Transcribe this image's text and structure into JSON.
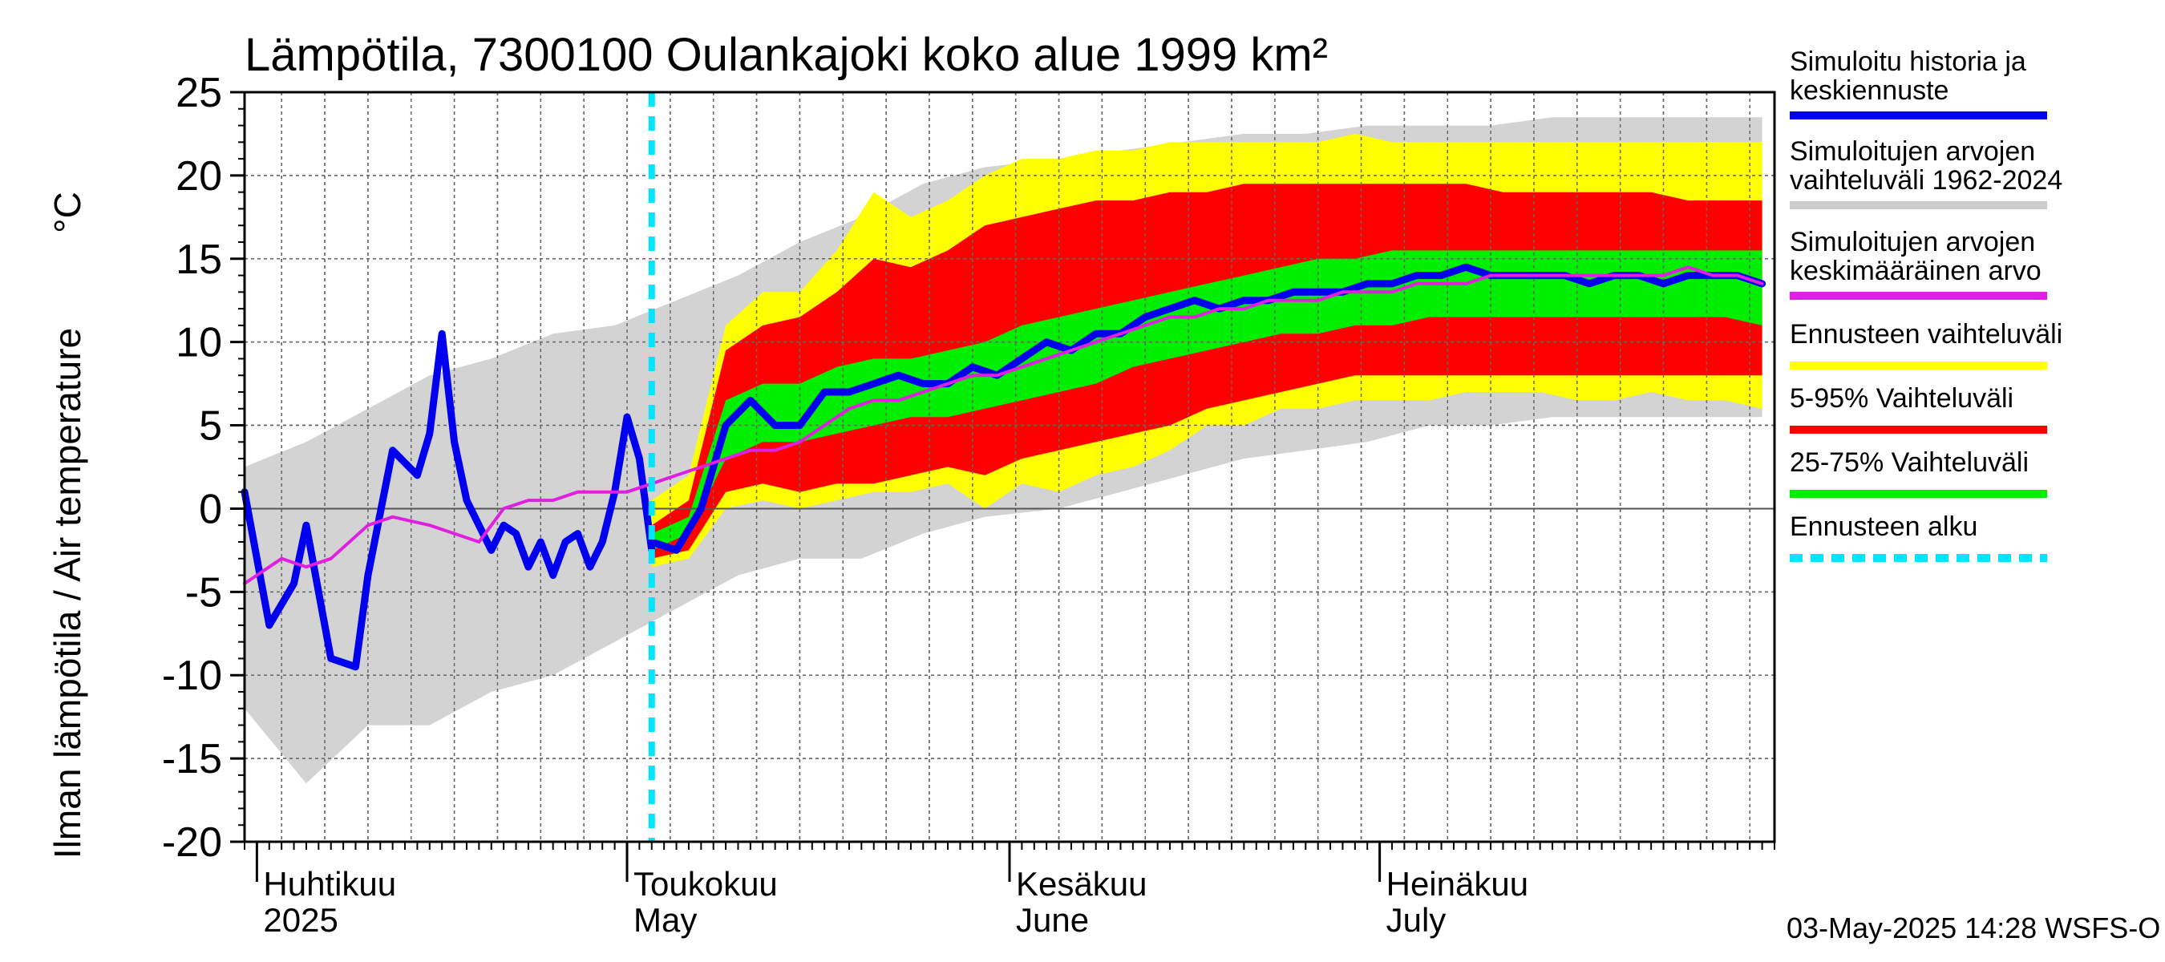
{
  "chart_data": {
    "type": "area",
    "title": "Lämpötila, 7300100 Oulankajoki koko alue 1999 km²",
    "ylabel": "Ilman lämpötila / Air temperature",
    "yunit": "°C",
    "ylim": [
      -20,
      25
    ],
    "yticks": [
      -20,
      -15,
      -10,
      -5,
      0,
      5,
      10,
      15,
      20,
      25
    ],
    "xlim": [
      "2025-03-31",
      "2025-08-02"
    ],
    "month_labels": [
      {
        "fi": "Huhtikuu",
        "en": "2025",
        "date": "2025-04-01"
      },
      {
        "fi": "Toukokuu",
        "en": "May",
        "date": "2025-05-01"
      },
      {
        "fi": "Kesäkuu",
        "en": "June",
        "date": "2025-06-01"
      },
      {
        "fi": "Heinäkuu",
        "en": "July",
        "date": "2025-07-01"
      }
    ],
    "forecast_start": "2025-05-03",
    "timestamp": "03-May-2025 14:28 WSFS-O",
    "grid": true,
    "legend_position": "right",
    "legend": [
      {
        "label_line1": "Simuloitu historia ja",
        "label_line2": "keskiennuste",
        "color": "#0000ee",
        "style": "line"
      },
      {
        "label_line1": "Simuloitujen arvojen",
        "label_line2": "vaihteluväli 1962-2024",
        "color": "#cccccc",
        "style": "line"
      },
      {
        "label_line1": "Simuloitujen arvojen",
        "label_line2": "keskimääräinen arvo",
        "color": "#e020e0",
        "style": "line"
      },
      {
        "label_line1": "Ennusteen vaihteluväli",
        "label_line2": "",
        "color": "#ffff00",
        "style": "line"
      },
      {
        "label_line1": "5-95% Vaihteluväli",
        "label_line2": "",
        "color": "#ff0000",
        "style": "line"
      },
      {
        "label_line1": "25-75% Vaihteluväli",
        "label_line2": "",
        "color": "#00ee00",
        "style": "line"
      },
      {
        "label_line1": "Ennusteen alku",
        "label_line2": "",
        "color": "#00e5ff",
        "style": "dashed"
      }
    ],
    "series": [
      {
        "name": "Simuloitu historia ja keskiennuste",
        "role": "history",
        "x": [
          "2025-03-31",
          "2025-04-02",
          "2025-04-04",
          "2025-04-05",
          "2025-04-07",
          "2025-04-09",
          "2025-04-10",
          "2025-04-12",
          "2025-04-14",
          "2025-04-15",
          "2025-04-16",
          "2025-04-17",
          "2025-04-18",
          "2025-04-20",
          "2025-04-21",
          "2025-04-22",
          "2025-04-23",
          "2025-04-24",
          "2025-04-25",
          "2025-04-26",
          "2025-04-27",
          "2025-04-28",
          "2025-04-29",
          "2025-04-30",
          "2025-05-01",
          "2025-05-02",
          "2025-05-03"
        ],
        "values": [
          1.0,
          -7.0,
          -4.5,
          -1.0,
          -9.0,
          -9.5,
          -4.0,
          3.5,
          2.0,
          4.5,
          10.5,
          4.0,
          0.5,
          -2.5,
          -1.0,
          -1.5,
          -3.5,
          -2.0,
          -4.0,
          -2.0,
          -1.5,
          -3.5,
          -2.0,
          1.0,
          5.5,
          3.0,
          -2.5
        ]
      },
      {
        "name": "keskiennuste",
        "role": "median-forecast",
        "x": [
          "2025-05-03",
          "2025-05-05",
          "2025-05-07",
          "2025-05-09",
          "2025-05-11",
          "2025-05-13",
          "2025-05-15",
          "2025-05-17",
          "2025-05-19",
          "2025-05-21",
          "2025-05-23",
          "2025-05-25",
          "2025-05-27",
          "2025-05-29",
          "2025-05-31",
          "2025-06-02",
          "2025-06-04",
          "2025-06-06",
          "2025-06-08",
          "2025-06-10",
          "2025-06-12",
          "2025-06-14",
          "2025-06-16",
          "2025-06-18",
          "2025-06-20",
          "2025-06-22",
          "2025-06-24",
          "2025-06-26",
          "2025-06-28",
          "2025-06-30",
          "2025-07-02",
          "2025-07-04",
          "2025-07-06",
          "2025-07-08",
          "2025-07-10",
          "2025-07-12",
          "2025-07-14",
          "2025-07-16",
          "2025-07-18",
          "2025-07-20",
          "2025-07-22",
          "2025-07-24",
          "2025-07-26",
          "2025-07-28",
          "2025-07-30",
          "2025-08-01"
        ],
        "values": [
          -2.0,
          -2.5,
          0.0,
          5.0,
          6.5,
          5.0,
          5.0,
          7.0,
          7.0,
          7.5,
          8.0,
          7.5,
          7.5,
          8.5,
          8.0,
          9.0,
          10.0,
          9.5,
          10.5,
          10.5,
          11.5,
          12.0,
          12.5,
          12.0,
          12.5,
          12.5,
          13.0,
          13.0,
          13.0,
          13.5,
          13.5,
          14.0,
          14.0,
          14.5,
          14.0,
          14.0,
          14.0,
          14.0,
          13.5,
          14.0,
          14.0,
          13.5,
          14.0,
          14.0,
          14.0,
          13.5
        ]
      },
      {
        "name": "Simuloitujen arvojen keskimääräinen arvo",
        "role": "mean",
        "x": [
          "2025-03-31",
          "2025-04-03",
          "2025-04-05",
          "2025-04-07",
          "2025-04-10",
          "2025-04-12",
          "2025-04-15",
          "2025-04-17",
          "2025-04-19",
          "2025-04-21",
          "2025-04-23",
          "2025-04-25",
          "2025-04-27",
          "2025-04-29",
          "2025-05-01",
          "2025-05-03",
          "2025-05-05",
          "2025-05-07",
          "2025-05-09",
          "2025-05-11",
          "2025-05-13",
          "2025-05-15",
          "2025-05-17",
          "2025-05-19",
          "2025-05-21",
          "2025-05-23",
          "2025-05-25",
          "2025-05-27",
          "2025-05-29",
          "2025-05-31",
          "2025-06-02",
          "2025-06-04",
          "2025-06-06",
          "2025-06-08",
          "2025-06-10",
          "2025-06-12",
          "2025-06-14",
          "2025-06-16",
          "2025-06-18",
          "2025-06-20",
          "2025-06-22",
          "2025-06-24",
          "2025-06-26",
          "2025-06-28",
          "2025-06-30",
          "2025-07-02",
          "2025-07-04",
          "2025-07-06",
          "2025-07-08",
          "2025-07-10",
          "2025-07-12",
          "2025-07-14",
          "2025-07-16",
          "2025-07-18",
          "2025-07-20",
          "2025-07-22",
          "2025-07-24",
          "2025-07-26",
          "2025-07-28",
          "2025-07-30",
          "2025-08-01"
        ],
        "values": [
          -4.5,
          -3.0,
          -3.5,
          -3.0,
          -1.0,
          -0.5,
          -1.0,
          -1.5,
          -2.0,
          0.0,
          0.5,
          0.5,
          1.0,
          1.0,
          1.0,
          1.5,
          2.0,
          2.5,
          3.0,
          3.5,
          3.5,
          4.0,
          5.0,
          6.0,
          6.5,
          6.5,
          7.0,
          7.5,
          8.0,
          8.0,
          8.5,
          9.0,
          9.5,
          10.0,
          10.5,
          11.0,
          11.5,
          11.5,
          12.0,
          12.0,
          12.5,
          12.5,
          12.5,
          13.0,
          13.0,
          13.0,
          13.5,
          13.5,
          13.5,
          14.0,
          14.0,
          14.0,
          14.0,
          14.0,
          14.0,
          14.0,
          14.0,
          14.5,
          14.0,
          14.0,
          13.5
        ]
      },
      {
        "name": "Simuloitujen arvojen vaihteluväli 1962-2024",
        "role": "band",
        "x": [
          "2025-03-31",
          "2025-04-05",
          "2025-04-10",
          "2025-04-15",
          "2025-04-20",
          "2025-04-25",
          "2025-04-30",
          "2025-05-05",
          "2025-05-10",
          "2025-05-15",
          "2025-05-20",
          "2025-05-25",
          "2025-05-30",
          "2025-06-05",
          "2025-06-10",
          "2025-06-15",
          "2025-06-20",
          "2025-06-25",
          "2025-06-30",
          "2025-07-05",
          "2025-07-10",
          "2025-07-15",
          "2025-07-20",
          "2025-07-25",
          "2025-08-01"
        ],
        "low": [
          -12.0,
          -16.5,
          -13.0,
          -13.0,
          -11.0,
          -10.0,
          -8.0,
          -6.0,
          -4.0,
          -3.0,
          -3.0,
          -1.5,
          -0.5,
          0.0,
          1.0,
          2.0,
          3.0,
          3.5,
          4.0,
          5.0,
          5.0,
          5.5,
          5.5,
          5.5,
          5.5
        ],
        "high": [
          2.5,
          4.0,
          6.0,
          8.0,
          9.0,
          10.5,
          11.0,
          12.5,
          14.0,
          16.0,
          17.5,
          19.5,
          20.5,
          21.0,
          21.5,
          22.0,
          22.5,
          22.5,
          23.0,
          23.0,
          23.0,
          23.5,
          23.5,
          23.5,
          23.5
        ]
      },
      {
        "name": "Ennusteen vaihteluväli",
        "role": "band",
        "x": [
          "2025-05-03",
          "2025-05-06",
          "2025-05-09",
          "2025-05-12",
          "2025-05-15",
          "2025-05-18",
          "2025-05-21",
          "2025-05-24",
          "2025-05-27",
          "2025-05-30",
          "2025-06-02",
          "2025-06-05",
          "2025-06-08",
          "2025-06-11",
          "2025-06-14",
          "2025-06-17",
          "2025-06-20",
          "2025-06-23",
          "2025-06-26",
          "2025-06-29",
          "2025-07-02",
          "2025-07-05",
          "2025-07-08",
          "2025-07-11",
          "2025-07-14",
          "2025-07-17",
          "2025-07-20",
          "2025-07-23",
          "2025-07-26",
          "2025-07-29",
          "2025-08-01"
        ],
        "low": [
          -3.5,
          -3.0,
          0.0,
          0.5,
          0.0,
          0.5,
          1.0,
          1.0,
          1.5,
          0.0,
          1.5,
          1.0,
          2.0,
          2.5,
          3.5,
          5.0,
          5.0,
          6.0,
          6.0,
          6.5,
          6.5,
          6.5,
          7.0,
          7.0,
          7.0,
          6.5,
          6.5,
          7.0,
          6.5,
          6.5,
          6.0
        ],
        "high": [
          0.5,
          2.0,
          11.0,
          13.0,
          13.0,
          15.5,
          19.0,
          17.5,
          18.5,
          20.0,
          21.0,
          21.0,
          21.5,
          21.5,
          22.0,
          22.0,
          22.0,
          22.0,
          22.0,
          22.5,
          22.0,
          22.0,
          22.0,
          22.0,
          22.0,
          22.0,
          22.0,
          22.0,
          22.0,
          22.0,
          22.0
        ]
      },
      {
        "name": "5-95% Vaihteluväli",
        "role": "band",
        "x": [
          "2025-05-03",
          "2025-05-06",
          "2025-05-09",
          "2025-05-12",
          "2025-05-15",
          "2025-05-18",
          "2025-05-21",
          "2025-05-24",
          "2025-05-27",
          "2025-05-30",
          "2025-06-02",
          "2025-06-05",
          "2025-06-08",
          "2025-06-11",
          "2025-06-14",
          "2025-06-17",
          "2025-06-20",
          "2025-06-23",
          "2025-06-26",
          "2025-06-29",
          "2025-07-02",
          "2025-07-05",
          "2025-07-08",
          "2025-07-11",
          "2025-07-14",
          "2025-07-17",
          "2025-07-20",
          "2025-07-23",
          "2025-07-26",
          "2025-07-29",
          "2025-08-01"
        ],
        "low": [
          -3.0,
          -2.5,
          1.0,
          1.5,
          1.0,
          1.5,
          1.5,
          2.0,
          2.5,
          2.0,
          3.0,
          3.5,
          4.0,
          4.5,
          5.0,
          6.0,
          6.5,
          7.0,
          7.5,
          8.0,
          8.0,
          8.0,
          8.0,
          8.0,
          8.0,
          8.0,
          8.0,
          8.0,
          8.0,
          8.0,
          8.0
        ],
        "high": [
          -1.0,
          0.5,
          9.5,
          11.0,
          11.5,
          13.0,
          15.0,
          14.5,
          15.5,
          17.0,
          17.5,
          18.0,
          18.5,
          18.5,
          19.0,
          19.0,
          19.5,
          19.5,
          19.5,
          19.5,
          19.5,
          19.5,
          19.5,
          19.0,
          19.0,
          19.0,
          19.0,
          19.0,
          18.5,
          18.5,
          18.5
        ]
      },
      {
        "name": "25-75% Vaihteluväli",
        "role": "band",
        "x": [
          "2025-05-03",
          "2025-05-06",
          "2025-05-09",
          "2025-05-12",
          "2025-05-15",
          "2025-05-18",
          "2025-05-21",
          "2025-05-24",
          "2025-05-27",
          "2025-05-30",
          "2025-06-02",
          "2025-06-05",
          "2025-06-08",
          "2025-06-11",
          "2025-06-14",
          "2025-06-17",
          "2025-06-20",
          "2025-06-23",
          "2025-06-26",
          "2025-06-29",
          "2025-07-02",
          "2025-07-05",
          "2025-07-08",
          "2025-07-11",
          "2025-07-14",
          "2025-07-17",
          "2025-07-20",
          "2025-07-23",
          "2025-07-26",
          "2025-07-29",
          "2025-08-01"
        ],
        "low": [
          -2.5,
          -1.5,
          3.0,
          4.0,
          4.0,
          4.5,
          5.0,
          5.5,
          5.5,
          6.0,
          6.5,
          7.0,
          7.5,
          8.5,
          9.0,
          9.5,
          10.0,
          10.5,
          10.5,
          11.0,
          11.0,
          11.5,
          11.5,
          11.5,
          11.5,
          11.5,
          11.5,
          11.5,
          11.5,
          11.5,
          11.0
        ],
        "high": [
          -1.5,
          -0.5,
          6.5,
          7.5,
          7.5,
          8.5,
          9.0,
          9.0,
          9.5,
          10.0,
          11.0,
          11.5,
          12.0,
          12.5,
          13.0,
          13.5,
          14.0,
          14.5,
          15.0,
          15.0,
          15.5,
          15.5,
          15.5,
          15.5,
          15.5,
          15.5,
          15.5,
          15.5,
          15.5,
          15.5,
          15.5
        ]
      }
    ]
  }
}
